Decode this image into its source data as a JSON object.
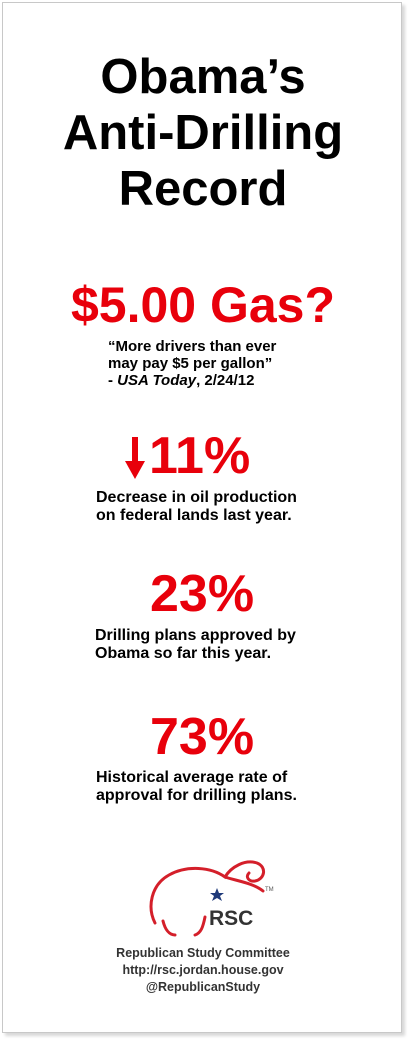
{
  "title_lines": [
    "Obama’s",
    "Anti-Drilling",
    "Record"
  ],
  "gas": {
    "headline": "$5.00 Gas?",
    "quote_line1": "“More drivers than ever",
    "quote_line2": "may pay $5 per gallon”",
    "source_prefix": "- ",
    "source_name": "USA Today",
    "source_date": ", 2/24/12"
  },
  "stats": [
    {
      "value": "11%",
      "desc_line1": "Decrease in oil production",
      "desc_line2": "on federal lands last year.",
      "icon": "down-arrow-icon"
    },
    {
      "value": "23%",
      "desc_line1": "Drilling plans approved by",
      "desc_line2": "Obama so far this year."
    },
    {
      "value": "73%",
      "desc_line1": "Historical average rate of",
      "desc_line2": "approval for drilling plans."
    }
  ],
  "logo": {
    "text": "RSC",
    "tm": "TM",
    "icon": "elephant-logo-icon"
  },
  "footer": {
    "org": "Republican Study Committee",
    "url": "http://rsc.jordan.house.gov",
    "handle": "@RepublicanStudy"
  },
  "colors": {
    "accent_red": "#e8000b",
    "text": "#000000",
    "footer_text": "#333333",
    "logo_blue": "#1f3a7a"
  }
}
